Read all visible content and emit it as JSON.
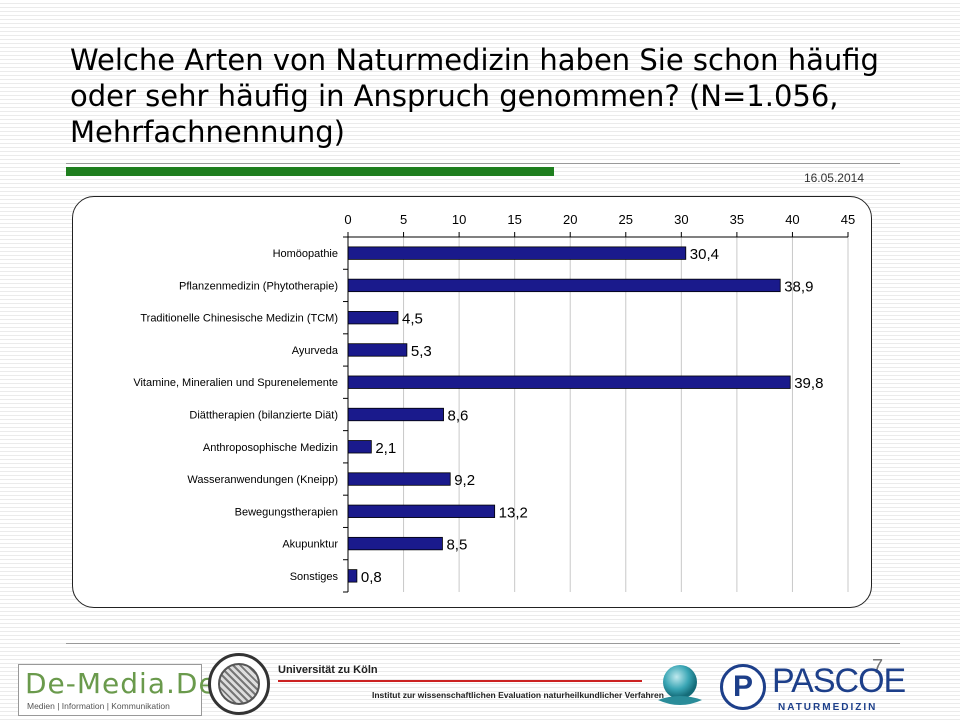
{
  "slide": {
    "title": "Welche Arten von Naturmedizin haben Sie schon häufig oder sehr häufig in Anspruch genommen? (N=1.056, Mehrfachnennung)",
    "date": "16.05.2014",
    "page_number": "7"
  },
  "colors": {
    "bar_fill": "#1a1a8c",
    "accent_green": "#1f7f1f",
    "uni_red": "#cc2222",
    "pascoe_blue": "#1d3f8a",
    "demedia_green": "#6a9a4c"
  },
  "chart_data": {
    "type": "bar",
    "orientation": "horizontal",
    "categories": [
      "Homöopathie",
      "Pflanzenmedizin (Phytotherapie)",
      "Traditionelle Chinesische Medizin (TCM)",
      "Ayurveda",
      "Vitamine, Mineralien und Spurenelemente",
      "Diättherapien (bilanzierte Diät)",
      "Anthroposophische Medizin",
      "Wasseranwendungen (Kneipp)",
      "Bewegungstherapien",
      "Akupunktur",
      "Sonstiges"
    ],
    "values": [
      30.4,
      38.9,
      4.5,
      5.3,
      39.8,
      8.6,
      2.1,
      9.2,
      13.2,
      8.5,
      0.8
    ],
    "value_labels": [
      "30,4",
      "38,9",
      "4,5",
      "5,3",
      "39,8",
      "8,6",
      "2,1",
      "9,2",
      "13,2",
      "8,5",
      "0,8"
    ],
    "xlim": [
      0,
      45
    ],
    "xticks": [
      "0",
      "5",
      "10",
      "15",
      "20",
      "25",
      "30",
      "35",
      "40",
      "45"
    ],
    "grid": "vertical",
    "axis_position": "top"
  },
  "footer": {
    "demedia": {
      "name": "De-Media.De",
      "tagline": "Medien | Information | Kommunikation"
    },
    "university": {
      "name": "Universität zu Köln",
      "institute": "Institut zur wissenschaftlichen Evaluation naturheilkundlicher Verfahren"
    },
    "pascoe": {
      "name": "PASCOE",
      "sub": "NATURMEDIZIN",
      "initial": "P"
    },
    "sphere_icon": "sphere-logo-icon"
  }
}
